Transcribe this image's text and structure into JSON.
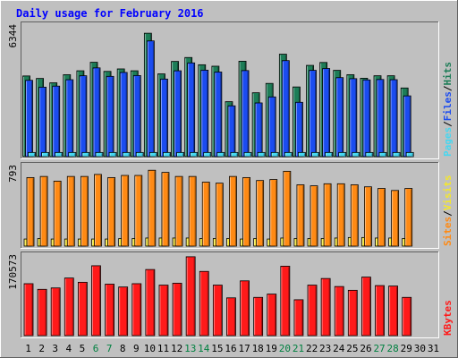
{
  "title": "Daily usage for February 2016",
  "days": [
    "1",
    "2",
    "3",
    "4",
    "5",
    "6",
    "7",
    "8",
    "9",
    "10",
    "11",
    "12",
    "13",
    "14",
    "15",
    "16",
    "17",
    "18",
    "19",
    "20",
    "21",
    "22",
    "23",
    "24",
    "25",
    "26",
    "27",
    "28",
    "29",
    "30",
    "31"
  ],
  "weekend_days": [
    "6",
    "7",
    "13",
    "14",
    "20",
    "21",
    "27",
    "28"
  ],
  "colors": {
    "background": "#c0c0c0",
    "title": "#0000ff",
    "hits": "#1d7d57",
    "files": "#1b4cf0",
    "pages": "#46d7f0",
    "visits": "#f5e72c",
    "sites": "#ff8a14",
    "kbytes": "#ff1a1a",
    "weekend_label": "#008040"
  },
  "chart_data": [
    {
      "type": "bar",
      "panel": "hits-files-pages",
      "ymax_label": "6344",
      "ylim": [
        0,
        6344
      ],
      "series_labels": [
        "Pages",
        "/",
        "Files",
        "/",
        "Hits"
      ],
      "series": [
        {
          "name": "Hits",
          "values": [
            3890,
            3770,
            3560,
            3950,
            4140,
            4550,
            4110,
            4230,
            4140,
            5950,
            3990,
            4590,
            4780,
            4430,
            4360,
            2650,
            4600,
            3080,
            3530,
            4940,
            3360,
            4400,
            4540,
            4160,
            3950,
            3780,
            3900,
            3900,
            3310
          ]
        },
        {
          "name": "Files",
          "values": [
            3680,
            3350,
            3400,
            3710,
            3900,
            4280,
            3870,
            4060,
            3910,
            5580,
            3740,
            4140,
            4520,
            4170,
            4080,
            2450,
            4150,
            2590,
            2880,
            4630,
            2620,
            4160,
            4250,
            3810,
            3760,
            3700,
            3720,
            3710,
            2930
          ]
        },
        {
          "name": "Pages",
          "values": [
            200,
            200,
            200,
            200,
            200,
            200,
            200,
            200,
            200,
            200,
            200,
            200,
            200,
            200,
            200,
            200,
            200,
            200,
            200,
            200,
            200,
            200,
            200,
            200,
            200,
            200,
            200,
            200,
            200
          ]
        }
      ]
    },
    {
      "type": "bar",
      "panel": "sites-visits",
      "ymax_label": "793",
      "ylim": [
        0,
        793
      ],
      "series_labels": [
        "Sites",
        "/",
        "Visits"
      ],
      "series": [
        {
          "name": "Sites",
          "values": [
            675,
            686,
            640,
            686,
            686,
            706,
            675,
            696,
            696,
            747,
            726,
            686,
            686,
            630,
            620,
            686,
            675,
            646,
            656,
            737,
            604,
            594,
            614,
            614,
            604,
            584,
            568,
            548,
            568
          ]
        },
        {
          "name": "Visits",
          "values": [
            70,
            75,
            70,
            70,
            70,
            70,
            70,
            75,
            75,
            80,
            80,
            80,
            80,
            75,
            75,
            75,
            70,
            75,
            70,
            80,
            75,
            75,
            75,
            80,
            85,
            85,
            80,
            80,
            75
          ]
        }
      ]
    },
    {
      "type": "bar",
      "panel": "kbytes",
      "ymax_label": "170573",
      "ylim": [
        0,
        170573
      ],
      "series_labels": [
        "KBytes"
      ],
      "series": [
        {
          "name": "KBytes",
          "values": [
            110000,
            98000,
            101000,
            122000,
            113000,
            148000,
            109000,
            103000,
            110000,
            140000,
            107000,
            111000,
            167000,
            136000,
            107000,
            80000,
            116000,
            81000,
            88000,
            147000,
            76000,
            107000,
            121000,
            104000,
            96000,
            124000,
            106000,
            105000,
            81000
          ]
        }
      ]
    }
  ]
}
